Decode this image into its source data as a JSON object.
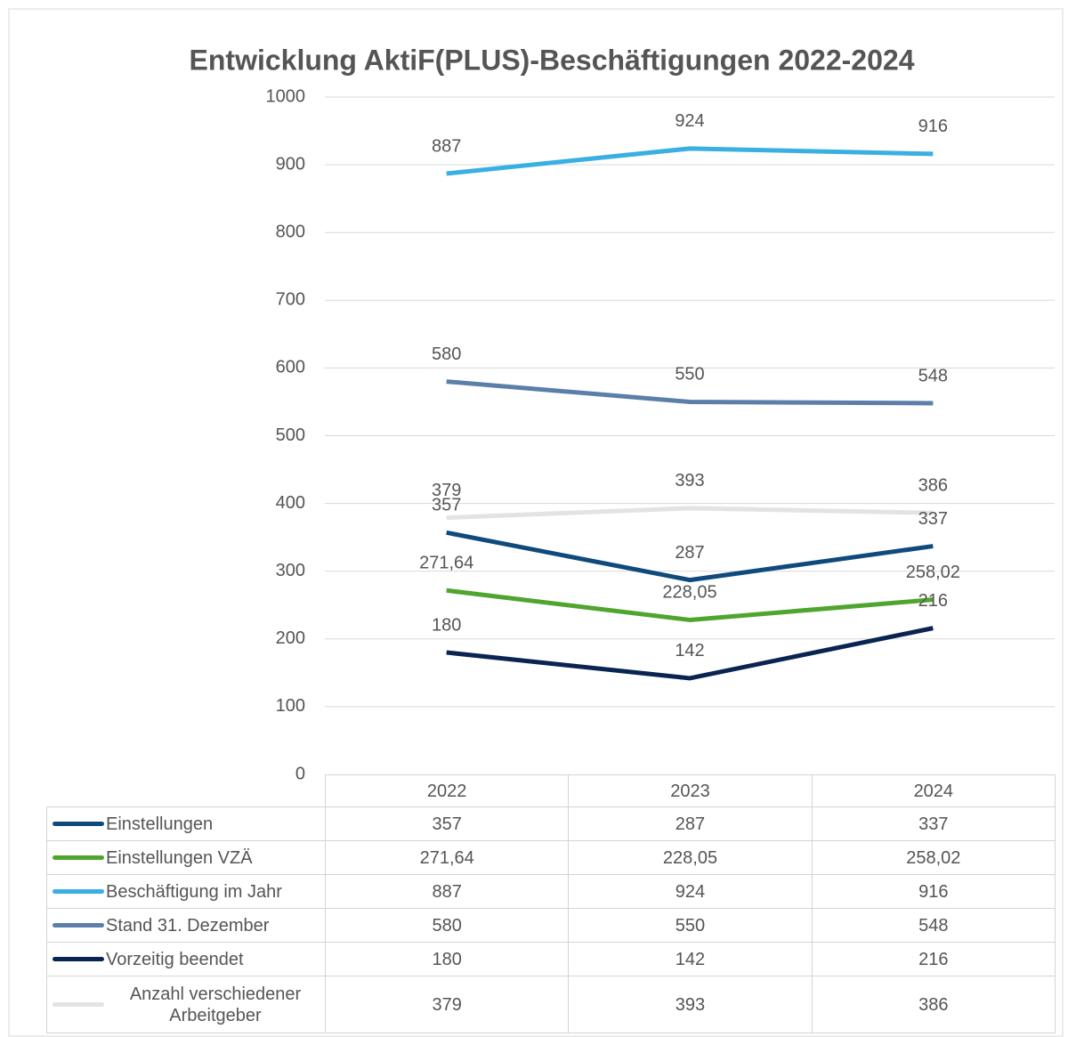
{
  "chart_data": {
    "type": "line",
    "title": "Entwicklung AktiF(PLUS)-Beschäftigungen 2022-2024",
    "categories": [
      "2022",
      "2023",
      "2024"
    ],
    "ylim": [
      0,
      1000
    ],
    "yticks": [
      0,
      100,
      200,
      300,
      400,
      500,
      600,
      700,
      800,
      900,
      1000
    ],
    "grid": true,
    "series": [
      {
        "name": "Einstellungen",
        "color": "#0f4a7c",
        "values": [
          357,
          287,
          337
        ]
      },
      {
        "name": "Einstellungen VZÄ",
        "color": "#4fa52e",
        "values": [
          271.64,
          228.05,
          258.02
        ],
        "value_labels": [
          "271,64",
          "228,05",
          "258,02"
        ]
      },
      {
        "name": "Beschäftigung im Jahr",
        "color": "#3aafe2",
        "values": [
          887,
          924,
          916
        ]
      },
      {
        "name": "Stand 31. Dezember",
        "color": "#5b7fa9",
        "values": [
          580,
          550,
          548
        ]
      },
      {
        "name": "Vorzeitig beendet",
        "color": "#0a2452",
        "values": [
          180,
          142,
          216
        ]
      },
      {
        "name": "Anzahl verschiedener Arbeitgeber",
        "color": "#e3e3e3",
        "values": [
          379,
          393,
          386
        ]
      }
    ]
  }
}
